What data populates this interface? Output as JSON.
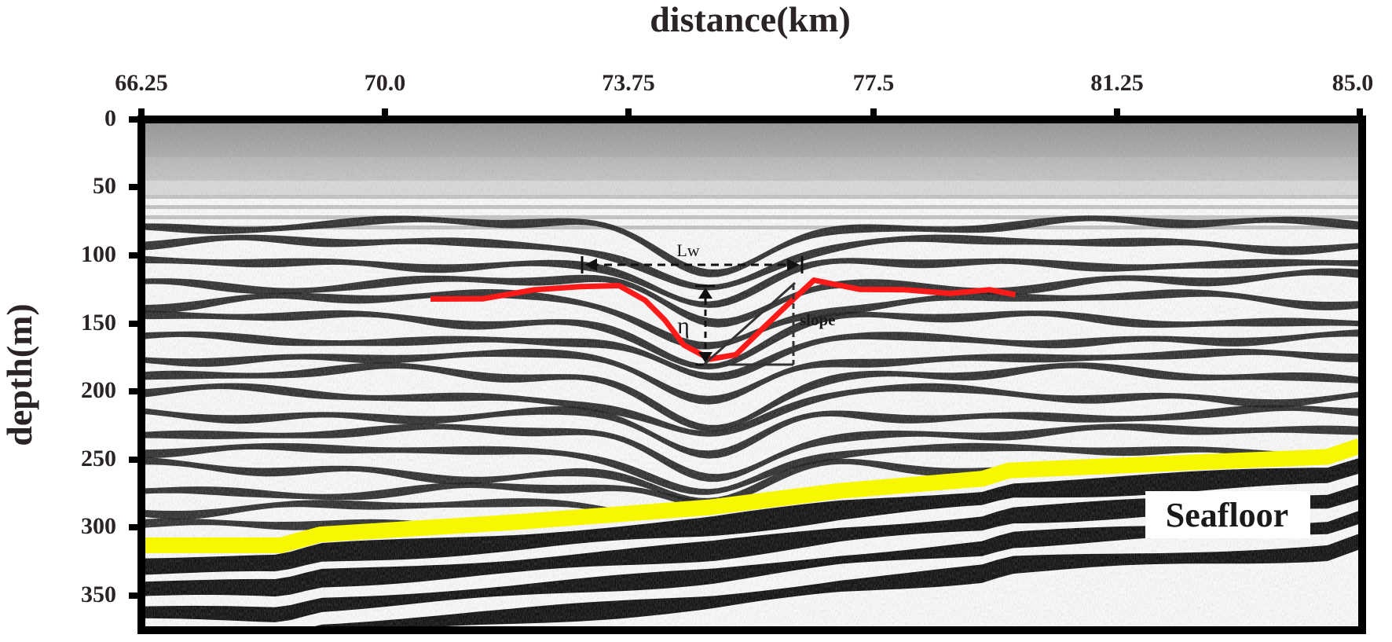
{
  "figure": {
    "x_axis": {
      "title": "distance(km)",
      "ticks": [
        "66.25",
        "70.0",
        "73.75",
        "77.5",
        "81.25",
        "85.0"
      ],
      "range": [
        66.25,
        85.0
      ],
      "position": "top"
    },
    "y_axis": {
      "title": "depth(m)",
      "ticks": [
        "0",
        "50",
        "100",
        "150",
        "200",
        "250",
        "300",
        "350"
      ],
      "range": [
        0,
        375
      ],
      "inverted": true
    },
    "annotations": {
      "width_label": "Lw",
      "height_label": "η",
      "slope_label": "slope",
      "seafloor_label": "Seafloor"
    },
    "colors": {
      "picked_horizon": "#ff1a1a",
      "seafloor_line": "#f7f700",
      "frame": "#000000",
      "text": "#2a2424"
    },
    "picked_horizon": [
      {
        "km": 70.7,
        "depth_m": 132
      },
      {
        "km": 71.5,
        "depth_m": 131
      },
      {
        "km": 72.3,
        "depth_m": 126
      },
      {
        "km": 73.0,
        "depth_m": 122
      },
      {
        "km": 73.6,
        "depth_m": 123
      },
      {
        "km": 74.0,
        "depth_m": 132
      },
      {
        "km": 74.3,
        "depth_m": 148
      },
      {
        "km": 74.6,
        "depth_m": 165
      },
      {
        "km": 75.0,
        "depth_m": 177
      },
      {
        "km": 75.4,
        "depth_m": 172
      },
      {
        "km": 75.8,
        "depth_m": 155
      },
      {
        "km": 76.2,
        "depth_m": 135
      },
      {
        "km": 76.6,
        "depth_m": 119
      },
      {
        "km": 77.3,
        "depth_m": 124
      },
      {
        "km": 78.0,
        "depth_m": 126
      },
      {
        "km": 78.7,
        "depth_m": 127
      },
      {
        "km": 79.3,
        "depth_m": 126
      },
      {
        "km": 79.7,
        "depth_m": 128
      }
    ],
    "seafloor": [
      {
        "km": 66.25,
        "depth_m": 313
      },
      {
        "km": 68.4,
        "depth_m": 313
      },
      {
        "km": 69.0,
        "depth_m": 305
      },
      {
        "km": 72.0,
        "depth_m": 296
      },
      {
        "km": 75.0,
        "depth_m": 285
      },
      {
        "km": 77.0,
        "depth_m": 273
      },
      {
        "km": 79.2,
        "depth_m": 264
      },
      {
        "km": 79.6,
        "depth_m": 258
      },
      {
        "km": 82.5,
        "depth_m": 252
      },
      {
        "km": 84.5,
        "depth_m": 248
      },
      {
        "km": 85.0,
        "depth_m": 240
      }
    ]
  }
}
